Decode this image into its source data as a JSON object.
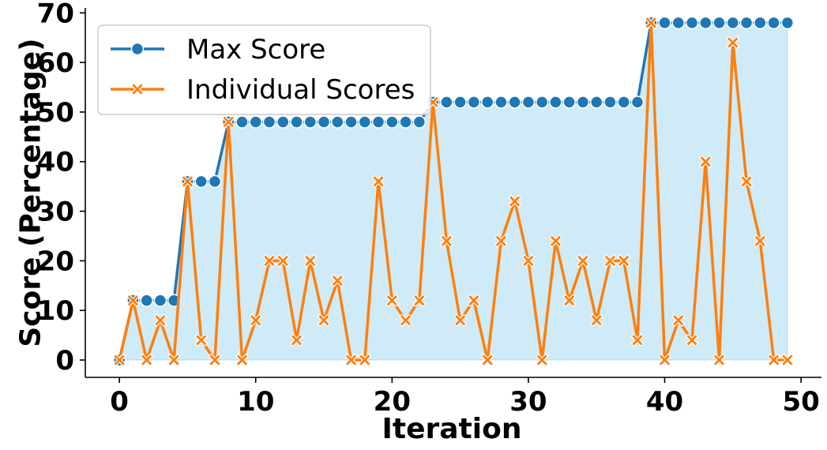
{
  "colors": {
    "max_series": "#1f77b4",
    "individual_series": "#ff7f0e",
    "fill_area": "#87ceeb",
    "legend_border": "#cccccc"
  },
  "chart_data": {
    "type": "line",
    "title": "",
    "xlabel": "Iteration",
    "ylabel": "Score (Percentage)",
    "xlim": [
      -2.5,
      51.5
    ],
    "ylim": [
      -3.5,
      71
    ],
    "x_ticks": [
      0,
      10,
      20,
      30,
      40,
      50
    ],
    "y_ticks": [
      0,
      10,
      20,
      30,
      40,
      50,
      60,
      70
    ],
    "grid": false,
    "legend_position": "top-left",
    "fill_under": "Max Score",
    "x": [
      0,
      1,
      2,
      3,
      4,
      5,
      6,
      7,
      8,
      9,
      10,
      11,
      12,
      13,
      14,
      15,
      16,
      17,
      18,
      19,
      20,
      21,
      22,
      23,
      24,
      25,
      26,
      27,
      28,
      29,
      30,
      31,
      32,
      33,
      34,
      35,
      36,
      37,
      38,
      39,
      40,
      41,
      42,
      43,
      44,
      45,
      46,
      47,
      48,
      49
    ],
    "series": [
      {
        "name": "Max Score",
        "marker": "circle",
        "values": [
          0,
          12,
          12,
          12,
          12,
          36,
          36,
          36,
          48,
          48,
          48,
          48,
          48,
          48,
          48,
          48,
          48,
          48,
          48,
          48,
          48,
          48,
          48,
          52,
          52,
          52,
          52,
          52,
          52,
          52,
          52,
          52,
          52,
          52,
          52,
          52,
          52,
          52,
          52,
          68,
          68,
          68,
          68,
          68,
          68,
          68,
          68,
          68,
          68,
          68
        ]
      },
      {
        "name": "Individual Scores",
        "marker": "x",
        "values": [
          0,
          12,
          0,
          8,
          0,
          36,
          4,
          0,
          48,
          0,
          8,
          20,
          20,
          4,
          20,
          8,
          16,
          0,
          0,
          36,
          12,
          8,
          12,
          52,
          24,
          8,
          12,
          0,
          24,
          32,
          20,
          0,
          24,
          12,
          20,
          8,
          20,
          20,
          4,
          68,
          0,
          8,
          4,
          40,
          0,
          64,
          36,
          24,
          0,
          0
        ]
      }
    ]
  }
}
